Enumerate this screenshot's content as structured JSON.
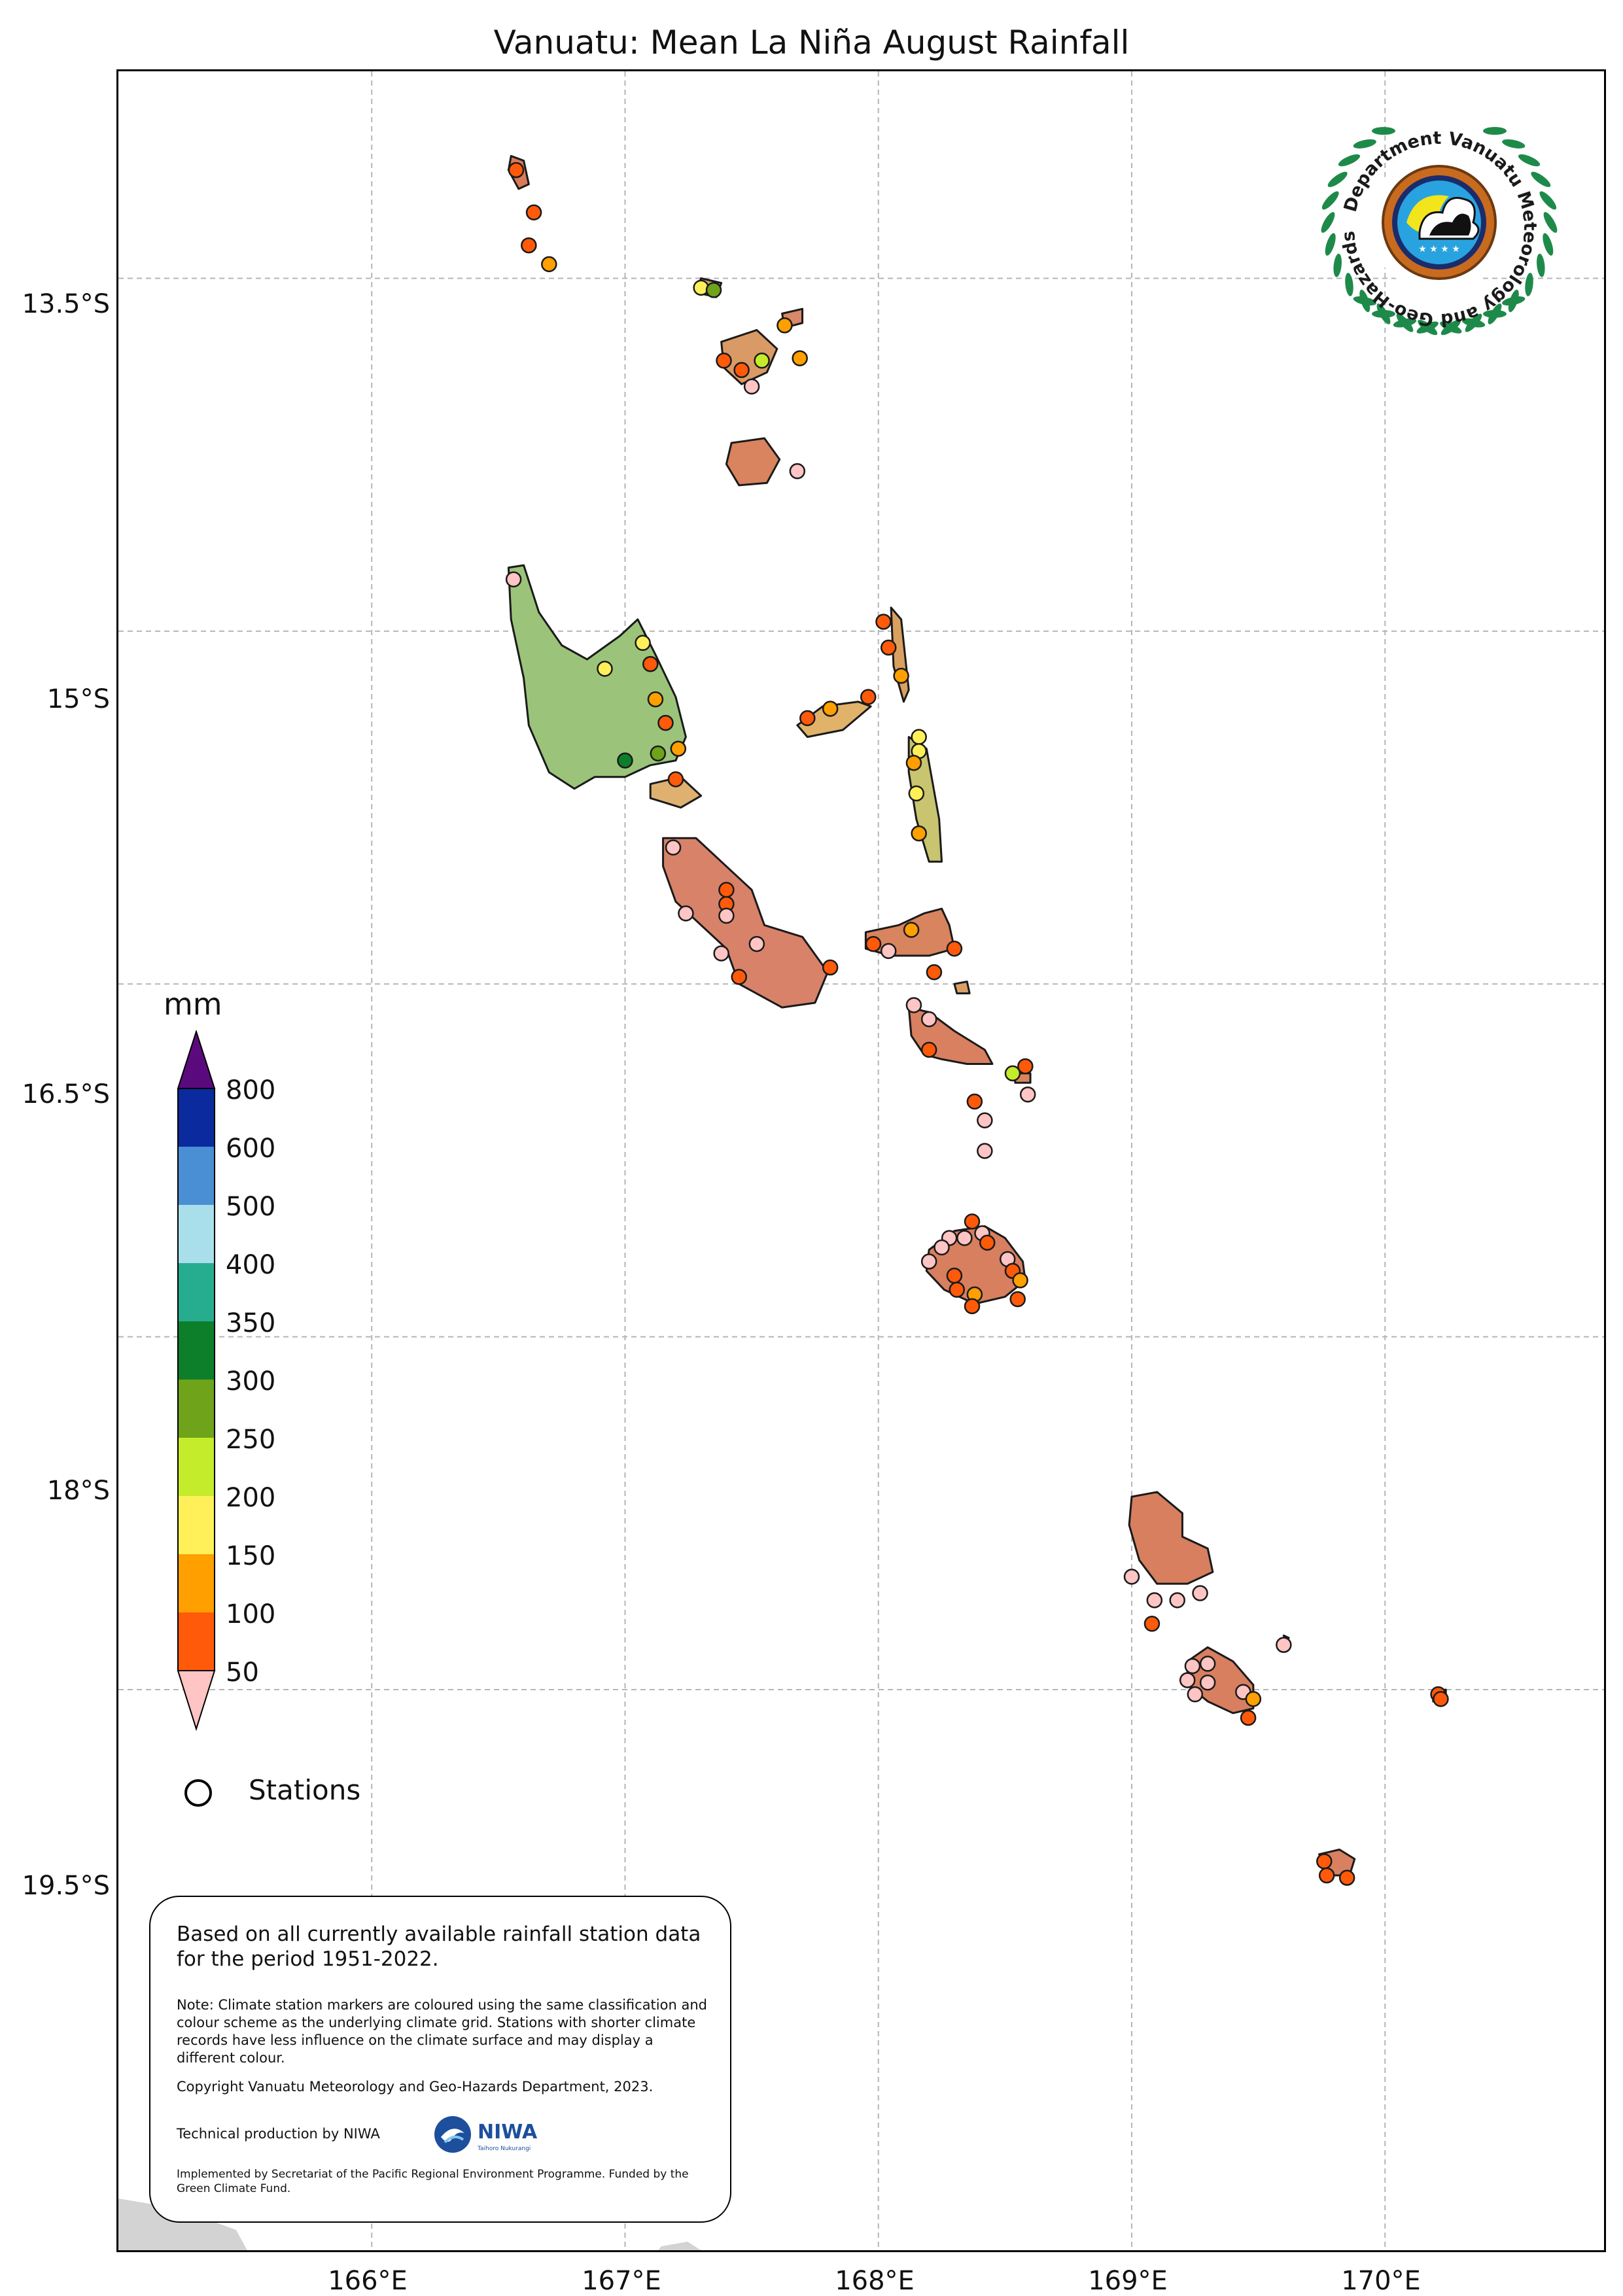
{
  "title": "Vanuatu: Mean La Niña August Rainfall",
  "axes": {
    "lat_ticks": [
      "13.5°S",
      "15°S",
      "16.5°S",
      "18°S",
      "19.5°S"
    ],
    "lon_ticks": [
      "166°E",
      "167°E",
      "168°E",
      "169°E",
      "170°E"
    ],
    "lat_values": [
      -13.5,
      -15,
      -16.5,
      -18,
      -19.5
    ],
    "lon_values": [
      166,
      167,
      168,
      169,
      170
    ],
    "lon_range": [
      165.0,
      170.88
    ],
    "lat_range": [
      -21.9,
      -12.62
    ],
    "grid": true
  },
  "legend": {
    "unit": "mm",
    "labels": [
      "800",
      "600",
      "500",
      "400",
      "350",
      "300",
      "250",
      "200",
      "150",
      "100",
      "50"
    ],
    "colors": [
      "#5b0a7d",
      "#0a2a9e",
      "#4a8fd4",
      "#a8dfea",
      "#26ad8f",
      "#0d7f2a",
      "#6ea31a",
      "#c5ec2a",
      "#fff05a",
      "#ff9f00",
      "#ff5a0a",
      "#ffc4c4"
    ],
    "stations_label": "Stations"
  },
  "info": {
    "main_text": "Based on all currently available rainfall station data for the period 1951-2022.",
    "note": "Note: Climate station markers are coloured using the same classification and colour scheme as the underlying climate grid. Stations with shorter climate records have less influence on the climate surface and may display a different colour.",
    "copyright": "Copyright Vanuatu Meteorology and Geo-Hazards Department, 2023.",
    "tech": "Technical production by NIWA",
    "implemented": "Implemented by Secretariat of the Pacific Regional Environment Programme. Funded by the Green Climate Fund.",
    "niwa_logo_text": "NIWA",
    "niwa_logo_sub": "Taihoro Nukurangi"
  },
  "met_logo_text": "Department Vanuatu Meteorology and Geo-Hazards",
  "stations": [
    {
      "lon": 166.57,
      "lat": -13.04,
      "color": "#ff5a0a"
    },
    {
      "lon": 166.64,
      "lat": -13.22,
      "color": "#ff5a0a"
    },
    {
      "lon": 166.62,
      "lat": -13.36,
      "color": "#ff5a0a"
    },
    {
      "lon": 166.7,
      "lat": -13.44,
      "color": "#ff9f00"
    },
    {
      "lon": 167.3,
      "lat": -13.54,
      "color": "#fff05a"
    },
    {
      "lon": 167.35,
      "lat": -13.55,
      "color": "#6ea31a"
    },
    {
      "lon": 167.63,
      "lat": -13.7,
      "color": "#ff9f00"
    },
    {
      "lon": 167.39,
      "lat": -13.85,
      "color": "#ff5a0a"
    },
    {
      "lon": 167.46,
      "lat": -13.89,
      "color": "#ff5a0a"
    },
    {
      "lon": 167.54,
      "lat": -13.85,
      "color": "#c5ec2a"
    },
    {
      "lon": 167.69,
      "lat": -13.84,
      "color": "#ff9f00"
    },
    {
      "lon": 167.5,
      "lat": -13.96,
      "color": "#ffc4c4"
    },
    {
      "lon": 167.68,
      "lat": -14.32,
      "color": "#ffc4c4"
    },
    {
      "lon": 166.56,
      "lat": -14.78,
      "color": "#ffc4c4"
    },
    {
      "lon": 166.92,
      "lat": -15.16,
      "color": "#fff05a"
    },
    {
      "lon": 167.07,
      "lat": -15.05,
      "color": "#fff05a"
    },
    {
      "lon": 167.1,
      "lat": -15.14,
      "color": "#ff5a0a"
    },
    {
      "lon": 167.12,
      "lat": -15.29,
      "color": "#ff9f00"
    },
    {
      "lon": 167.16,
      "lat": -15.39,
      "color": "#ff5a0a"
    },
    {
      "lon": 167.21,
      "lat": -15.5,
      "color": "#ff9f00"
    },
    {
      "lon": 167.13,
      "lat": -15.52,
      "color": "#6ea31a"
    },
    {
      "lon": 167.0,
      "lat": -15.55,
      "color": "#0d7f2a"
    },
    {
      "lon": 167.2,
      "lat": -15.63,
      "color": "#ff5a0a"
    },
    {
      "lon": 167.72,
      "lat": -15.37,
      "color": "#ff5a0a"
    },
    {
      "lon": 167.81,
      "lat": -15.33,
      "color": "#ff9f00"
    },
    {
      "lon": 167.96,
      "lat": -15.28,
      "color": "#ff5a0a"
    },
    {
      "lon": 168.02,
      "lat": -14.96,
      "color": "#ff5a0a"
    },
    {
      "lon": 168.04,
      "lat": -15.07,
      "color": "#ff5a0a"
    },
    {
      "lon": 168.09,
      "lat": -15.19,
      "color": "#ff9f00"
    },
    {
      "lon": 168.16,
      "lat": -15.45,
      "color": "#fff05a"
    },
    {
      "lon": 168.16,
      "lat": -15.51,
      "color": "#fff05a"
    },
    {
      "lon": 168.14,
      "lat": -15.56,
      "color": "#ff9f00"
    },
    {
      "lon": 168.15,
      "lat": -15.69,
      "color": "#fff05a"
    },
    {
      "lon": 168.16,
      "lat": -15.86,
      "color": "#ff9f00"
    },
    {
      "lon": 167.19,
      "lat": -15.92,
      "color": "#ffc4c4"
    },
    {
      "lon": 167.4,
      "lat": -16.1,
      "color": "#ff5a0a"
    },
    {
      "lon": 167.4,
      "lat": -16.16,
      "color": "#ff5a0a"
    },
    {
      "lon": 167.4,
      "lat": -16.21,
      "color": "#ffc4c4"
    },
    {
      "lon": 167.24,
      "lat": -16.2,
      "color": "#ffc4c4"
    },
    {
      "lon": 167.38,
      "lat": -16.37,
      "color": "#ffc4c4"
    },
    {
      "lon": 167.52,
      "lat": -16.33,
      "color": "#ffc4c4"
    },
    {
      "lon": 167.45,
      "lat": -16.47,
      "color": "#ff5a0a"
    },
    {
      "lon": 167.81,
      "lat": -16.43,
      "color": "#ff5a0a"
    },
    {
      "lon": 168.13,
      "lat": -16.27,
      "color": "#ff9f00"
    },
    {
      "lon": 167.98,
      "lat": -16.33,
      "color": "#ff5a0a"
    },
    {
      "lon": 168.04,
      "lat": -16.36,
      "color": "#ffc4c4"
    },
    {
      "lon": 168.3,
      "lat": -16.35,
      "color": "#ff5a0a"
    },
    {
      "lon": 168.22,
      "lat": -16.45,
      "color": "#ff5a0a"
    },
    {
      "lon": 168.14,
      "lat": -16.59,
      "color": "#ffc4c4"
    },
    {
      "lon": 168.2,
      "lat": -16.65,
      "color": "#ffc4c4"
    },
    {
      "lon": 168.2,
      "lat": -16.78,
      "color": "#ff5a0a"
    },
    {
      "lon": 168.58,
      "lat": -16.85,
      "color": "#ff5a0a"
    },
    {
      "lon": 168.53,
      "lat": -16.88,
      "color": "#c5ec2a"
    },
    {
      "lon": 168.59,
      "lat": -16.97,
      "color": "#ffc4c4"
    },
    {
      "lon": 168.38,
      "lat": -17.0,
      "color": "#ff5a0a"
    },
    {
      "lon": 168.42,
      "lat": -17.08,
      "color": "#ffc4c4"
    },
    {
      "lon": 168.42,
      "lat": -17.21,
      "color": "#ffc4c4"
    },
    {
      "lon": 168.37,
      "lat": -17.51,
      "color": "#ff5a0a"
    },
    {
      "lon": 168.28,
      "lat": -17.58,
      "color": "#ffc4c4"
    },
    {
      "lon": 168.34,
      "lat": -17.58,
      "color": "#ffc4c4"
    },
    {
      "lon": 168.41,
      "lat": -17.56,
      "color": "#ffc4c4"
    },
    {
      "lon": 168.43,
      "lat": -17.6,
      "color": "#ff5a0a"
    },
    {
      "lon": 168.2,
      "lat": -17.68,
      "color": "#ffc4c4"
    },
    {
      "lon": 168.25,
      "lat": -17.62,
      "color": "#ffc4c4"
    },
    {
      "lon": 168.3,
      "lat": -17.74,
      "color": "#ff5a0a"
    },
    {
      "lon": 168.31,
      "lat": -17.8,
      "color": "#ff5a0a"
    },
    {
      "lon": 168.38,
      "lat": -17.82,
      "color": "#ff9f00"
    },
    {
      "lon": 168.37,
      "lat": -17.87,
      "color": "#ff5a0a"
    },
    {
      "lon": 168.51,
      "lat": -17.67,
      "color": "#ffc4c4"
    },
    {
      "lon": 168.53,
      "lat": -17.72,
      "color": "#ff5a0a"
    },
    {
      "lon": 168.56,
      "lat": -17.76,
      "color": "#ff9f00"
    },
    {
      "lon": 168.55,
      "lat": -17.84,
      "color": "#ff5a0a"
    },
    {
      "lon": 169.0,
      "lat": -19.02,
      "color": "#ffc4c4"
    },
    {
      "lon": 169.09,
      "lat": -19.12,
      "color": "#ffc4c4"
    },
    {
      "lon": 169.18,
      "lat": -19.12,
      "color": "#ffc4c4"
    },
    {
      "lon": 169.27,
      "lat": -19.09,
      "color": "#ffc4c4"
    },
    {
      "lon": 169.08,
      "lat": -19.22,
      "color": "#ff5a0a"
    },
    {
      "lon": 169.6,
      "lat": -19.31,
      "color": "#ffc4c4"
    },
    {
      "lon": 169.24,
      "lat": -19.4,
      "color": "#ffc4c4"
    },
    {
      "lon": 169.3,
      "lat": -19.39,
      "color": "#ffc4c4"
    },
    {
      "lon": 169.22,
      "lat": -19.46,
      "color": "#ffc4c4"
    },
    {
      "lon": 169.3,
      "lat": -19.47,
      "color": "#ffc4c4"
    },
    {
      "lon": 169.25,
      "lat": -19.52,
      "color": "#ffc4c4"
    },
    {
      "lon": 169.44,
      "lat": -19.51,
      "color": "#ffc4c4"
    },
    {
      "lon": 169.48,
      "lat": -19.54,
      "color": "#ff9f00"
    },
    {
      "lon": 169.46,
      "lat": -19.62,
      "color": "#ff5a0a"
    },
    {
      "lon": 170.21,
      "lat": -19.52,
      "color": "#ff5a0a"
    },
    {
      "lon": 170.22,
      "lat": -19.54,
      "color": "#ff5a0a"
    },
    {
      "lon": 169.76,
      "lat": -20.23,
      "color": "#ff5a0a"
    },
    {
      "lon": 169.85,
      "lat": -20.3,
      "color": "#ff5a0a"
    },
    {
      "lon": 169.77,
      "lat": -20.29,
      "color": "#ff5a0a"
    }
  ],
  "islands": [
    {
      "name": "torres-islands",
      "fill": "#d97a5a",
      "pts": [
        [
          166.55,
          -12.98
        ],
        [
          166.6,
          -13.0
        ],
        [
          166.62,
          -13.1
        ],
        [
          166.58,
          -13.12
        ],
        [
          166.54,
          -13.04
        ]
      ]
    },
    {
      "name": "ureparapara",
      "fill": "#d6a070",
      "pts": [
        [
          167.3,
          -13.5
        ],
        [
          167.38,
          -13.52
        ],
        [
          167.36,
          -13.58
        ],
        [
          167.28,
          -13.56
        ]
      ]
    },
    {
      "name": "vanua-lava",
      "fill": "#d99a65",
      "pts": [
        [
          167.38,
          -13.77
        ],
        [
          167.52,
          -13.72
        ],
        [
          167.6,
          -13.8
        ],
        [
          167.56,
          -13.9
        ],
        [
          167.46,
          -13.95
        ],
        [
          167.39,
          -13.88
        ]
      ]
    },
    {
      "name": "mota-lava",
      "fill": "#d98868",
      "pts": [
        [
          167.62,
          -13.65
        ],
        [
          167.7,
          -13.63
        ],
        [
          167.7,
          -13.69
        ],
        [
          167.63,
          -13.71
        ]
      ]
    },
    {
      "name": "gaua",
      "fill": "#d9835f",
      "pts": [
        [
          167.42,
          -14.2
        ],
        [
          167.55,
          -14.18
        ],
        [
          167.61,
          -14.27
        ],
        [
          167.56,
          -14.37
        ],
        [
          167.45,
          -14.38
        ],
        [
          167.4,
          -14.29
        ]
      ]
    },
    {
      "name": "espiritu-santo",
      "fill": "#9bc47a",
      "pts": [
        [
          166.54,
          -14.73
        ],
        [
          166.6,
          -14.72
        ],
        [
          166.66,
          -14.92
        ],
        [
          166.75,
          -15.06
        ],
        [
          166.85,
          -15.12
        ],
        [
          166.98,
          -15.02
        ],
        [
          167.05,
          -14.95
        ],
        [
          167.12,
          -15.1
        ],
        [
          167.2,
          -15.28
        ],
        [
          167.24,
          -15.45
        ],
        [
          167.2,
          -15.55
        ],
        [
          167.1,
          -15.57
        ],
        [
          167.0,
          -15.62
        ],
        [
          166.88,
          -15.62
        ],
        [
          166.8,
          -15.67
        ],
        [
          166.7,
          -15.6
        ],
        [
          166.62,
          -15.4
        ],
        [
          166.6,
          -15.2
        ],
        [
          166.55,
          -14.95
        ]
      ]
    },
    {
      "name": "malo",
      "fill": "#e0b070",
      "pts": [
        [
          167.1,
          -15.65
        ],
        [
          167.22,
          -15.62
        ],
        [
          167.3,
          -15.7
        ],
        [
          167.22,
          -15.75
        ],
        [
          167.1,
          -15.71
        ]
      ]
    },
    {
      "name": "ambae",
      "fill": "#e1b26a",
      "pts": [
        [
          167.68,
          -15.4
        ],
        [
          167.78,
          -15.32
        ],
        [
          167.92,
          -15.3
        ],
        [
          167.97,
          -15.32
        ],
        [
          167.86,
          -15.42
        ],
        [
          167.72,
          -15.45
        ]
      ]
    },
    {
      "name": "maewo",
      "fill": "#d9a060",
      "pts": [
        [
          168.05,
          -14.9
        ],
        [
          168.09,
          -14.95
        ],
        [
          168.12,
          -15.25
        ],
        [
          168.1,
          -15.3
        ],
        [
          168.06,
          -15.15
        ]
      ]
    },
    {
      "name": "pentecost",
      "fill": "#c8c470",
      "pts": [
        [
          168.12,
          -15.45
        ],
        [
          168.19,
          -15.5
        ],
        [
          168.24,
          -15.8
        ],
        [
          168.25,
          -15.98
        ],
        [
          168.2,
          -15.98
        ],
        [
          168.15,
          -15.8
        ],
        [
          168.12,
          -15.6
        ]
      ]
    },
    {
      "name": "malakula",
      "fill": "#d8826a",
      "pts": [
        [
          167.15,
          -15.88
        ],
        [
          167.28,
          -15.88
        ],
        [
          167.4,
          -16.0
        ],
        [
          167.5,
          -16.1
        ],
        [
          167.55,
          -16.25
        ],
        [
          167.7,
          -16.3
        ],
        [
          167.8,
          -16.45
        ],
        [
          167.75,
          -16.58
        ],
        [
          167.62,
          -16.6
        ],
        [
          167.45,
          -16.5
        ],
        [
          167.4,
          -16.35
        ],
        [
          167.3,
          -16.25
        ],
        [
          167.2,
          -16.15
        ],
        [
          167.15,
          -16.0
        ]
      ]
    },
    {
      "name": "ambrym",
      "fill": "#d8845e",
      "pts": [
        [
          167.95,
          -16.28
        ],
        [
          168.08,
          -16.25
        ],
        [
          168.18,
          -16.2
        ],
        [
          168.25,
          -16.18
        ],
        [
          168.28,
          -16.25
        ],
        [
          168.3,
          -16.35
        ],
        [
          168.2,
          -16.38
        ],
        [
          168.05,
          -16.38
        ],
        [
          167.95,
          -16.35
        ]
      ]
    },
    {
      "name": "paama",
      "fill": "#d9a065",
      "pts": [
        [
          168.3,
          -16.5
        ],
        [
          168.35,
          -16.49
        ],
        [
          168.36,
          -16.54
        ],
        [
          168.31,
          -16.54
        ]
      ]
    },
    {
      "name": "epi",
      "fill": "#d88060",
      "pts": [
        [
          168.12,
          -16.6
        ],
        [
          168.2,
          -16.62
        ],
        [
          168.3,
          -16.7
        ],
        [
          168.42,
          -16.78
        ],
        [
          168.45,
          -16.84
        ],
        [
          168.35,
          -16.84
        ],
        [
          168.25,
          -16.82
        ],
        [
          168.18,
          -16.8
        ],
        [
          168.13,
          -16.72
        ]
      ]
    },
    {
      "name": "tongoa",
      "fill": "#d9855e",
      "pts": [
        [
          168.54,
          -16.88
        ],
        [
          168.6,
          -16.88
        ],
        [
          168.6,
          -16.92
        ],
        [
          168.54,
          -16.92
        ]
      ]
    },
    {
      "name": "efate",
      "fill": "#d77f5f",
      "pts": [
        [
          168.2,
          -17.63
        ],
        [
          168.3,
          -17.55
        ],
        [
          168.42,
          -17.53
        ],
        [
          168.5,
          -17.58
        ],
        [
          168.57,
          -17.68
        ],
        [
          168.58,
          -17.76
        ],
        [
          168.5,
          -17.83
        ],
        [
          168.38,
          -17.86
        ],
        [
          168.26,
          -17.8
        ],
        [
          168.19,
          -17.72
        ]
      ]
    },
    {
      "name": "erromango",
      "fill": "#d77f5f",
      "pts": [
        [
          169.0,
          -18.68
        ],
        [
          169.1,
          -18.66
        ],
        [
          169.2,
          -18.75
        ],
        [
          169.2,
          -18.85
        ],
        [
          169.3,
          -18.9
        ],
        [
          169.32,
          -19.0
        ],
        [
          169.22,
          -19.05
        ],
        [
          169.1,
          -19.05
        ],
        [
          169.03,
          -18.95
        ],
        [
          168.99,
          -18.8
        ]
      ]
    },
    {
      "name": "tanna",
      "fill": "#d77f5f",
      "pts": [
        [
          169.22,
          -19.38
        ],
        [
          169.3,
          -19.32
        ],
        [
          169.4,
          -19.38
        ],
        [
          169.48,
          -19.48
        ],
        [
          169.48,
          -19.58
        ],
        [
          169.4,
          -19.6
        ],
        [
          169.3,
          -19.55
        ],
        [
          169.22,
          -19.48
        ]
      ]
    },
    {
      "name": "aniwa",
      "fill": "#d9855e",
      "pts": [
        [
          169.6,
          -19.27
        ],
        [
          169.62,
          -19.28
        ],
        [
          169.61,
          -19.3
        ]
      ]
    },
    {
      "name": "futuna",
      "fill": "#d98060",
      "pts": [
        [
          170.19,
          -19.51
        ],
        [
          170.24,
          -19.5
        ],
        [
          170.24,
          -19.55
        ],
        [
          170.19,
          -19.55
        ]
      ]
    },
    {
      "name": "aneityum",
      "fill": "#d98060",
      "pts": [
        [
          169.74,
          -20.2
        ],
        [
          169.82,
          -20.18
        ],
        [
          169.88,
          -20.22
        ],
        [
          169.86,
          -20.29
        ],
        [
          169.78,
          -20.29
        ]
      ]
    }
  ]
}
